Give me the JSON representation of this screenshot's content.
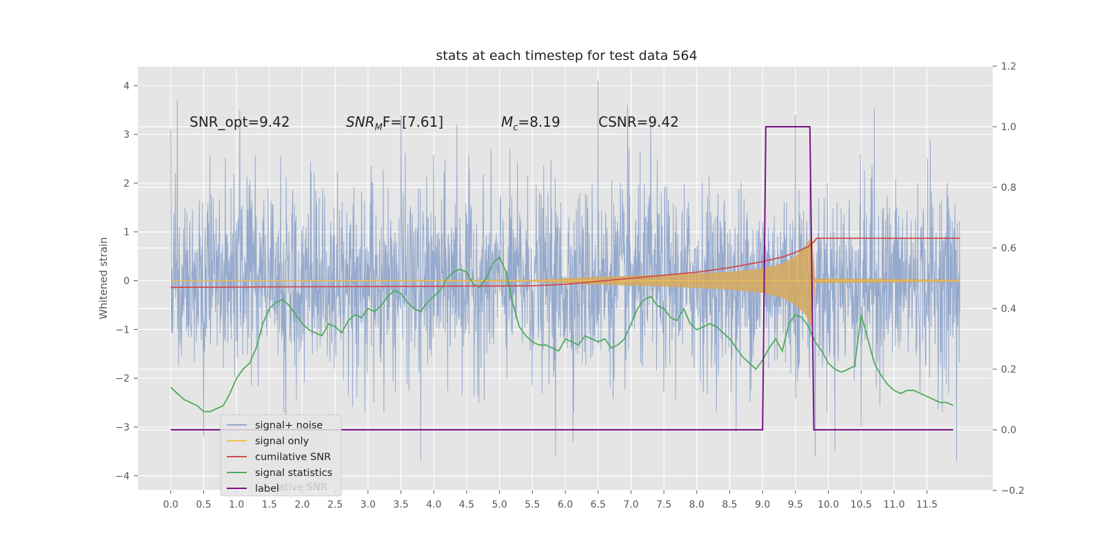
{
  "chart_data": {
    "type": "line",
    "title": "stats at each timestep for test data 564",
    "ylabel": "Whitened strain",
    "xlim": [
      -0.5,
      12.5
    ],
    "ylim": [
      -4.3,
      4.4
    ],
    "y2lim": [
      -0.2,
      1.2
    ],
    "x_ticks": [
      "0.0",
      "0.5",
      "1.0",
      "1.5",
      "2.0",
      "2.5",
      "3.0",
      "3.5",
      "4.0",
      "4.5",
      "5.0",
      "5.5",
      "6.0",
      "6.5",
      "7.0",
      "7.5",
      "8.0",
      "8.5",
      "9.0",
      "9.5",
      "10.0",
      "10.5",
      "11.0",
      "11.5"
    ],
    "y_ticks": [
      "4",
      "3",
      "2",
      "1",
      "0",
      "−1",
      "−2",
      "−3",
      "−4"
    ],
    "y2_ticks": [
      "1.2",
      "1.0",
      "0.8",
      "0.6",
      "0.4",
      "0.2",
      "0.0",
      "−0.2"
    ],
    "grid": true,
    "legend_position": "lower-left",
    "annotations": {
      "snr_opt": "SNR_opt=9.42",
      "snr_mf_main": "SNR",
      "snr_mf_sub": "M",
      "snr_mf_rest": "F=[7.61]",
      "mc_main": "M",
      "mc_sub": "c",
      "mc_rest": "=8.19",
      "csnr": "CSNR=9.42"
    },
    "legend": {
      "signal_noise": "signal+ noise",
      "signal_only": "signal only",
      "cumulative_snr": "cumilative SNR",
      "signal_statistics": "signal statistics",
      "label": "label",
      "ghost_text": "lative SNR"
    },
    "colors": {
      "signal_noise": "#8fa5cb",
      "signal_only": "#f2c14e",
      "signal_only_fill": "#d7a95a",
      "cumulative_snr": "#d04a4a",
      "signal_statistics": "#4caa5c",
      "label": "#7b0f87",
      "plot_bg": "#e5e5e5",
      "grid": "#ffffff"
    },
    "series": [
      {
        "name": "signal+ noise",
        "axis": "left",
        "x_range": [
          0.0,
          12.0
        ],
        "typical_envelope": [
          -2.1,
          2.1
        ],
        "peaks": [
          [
            0.0,
            3.1
          ],
          [
            0.1,
            3.7
          ],
          [
            1.05,
            3.5
          ],
          [
            3.5,
            3.4
          ],
          [
            4.35,
            3.2
          ],
          [
            6.5,
            4.1
          ],
          [
            6.95,
            3.6
          ],
          [
            7.3,
            3.4
          ],
          [
            9.5,
            3.4
          ],
          [
            10.7,
            3.55
          ],
          [
            11.55,
            2.9
          ]
        ],
        "troughs": [
          [
            0.5,
            -3.2
          ],
          [
            1.75,
            -3.0
          ],
          [
            3.8,
            -3.7
          ],
          [
            5.85,
            -3.6
          ],
          [
            6.12,
            -3.3
          ],
          [
            8.6,
            -3.1
          ],
          [
            9.8,
            -3.6
          ],
          [
            10.1,
            -3.5
          ],
          [
            10.5,
            -3.0
          ],
          [
            11.95,
            -3.7
          ]
        ]
      },
      {
        "name": "signal only",
        "axis": "left",
        "x": [
          0.0,
          5.5,
          6.0,
          6.5,
          7.0,
          7.5,
          8.0,
          8.5,
          9.0,
          9.3,
          9.5,
          9.65,
          9.75,
          9.8,
          12.0
        ],
        "envelope": [
          0.01,
          0.02,
          0.05,
          0.08,
          0.1,
          0.12,
          0.15,
          0.18,
          0.25,
          0.35,
          0.5,
          0.7,
          0.95,
          0.05,
          0.02
        ]
      },
      {
        "name": "cumilative SNR",
        "axis": "right",
        "x": [
          0.0,
          5.5,
          6.0,
          6.5,
          7.0,
          7.5,
          8.0,
          8.5,
          9.0,
          9.3,
          9.5,
          9.6,
          9.7,
          9.78,
          9.82,
          12.0
        ],
        "y": [
          0.47,
          0.475,
          0.48,
          0.49,
          0.5,
          0.51,
          0.52,
          0.535,
          0.555,
          0.57,
          0.585,
          0.595,
          0.605,
          0.62,
          0.632,
          0.632
        ]
      },
      {
        "name": "signal statistics",
        "axis": "right",
        "x": [
          0.0,
          0.1,
          0.2,
          0.3,
          0.4,
          0.5,
          0.6,
          0.7,
          0.8,
          0.9,
          1.0,
          1.1,
          1.2,
          1.3,
          1.4,
          1.5,
          1.6,
          1.7,
          1.8,
          1.9,
          2.0,
          2.1,
          2.2,
          2.3,
          2.4,
          2.5,
          2.6,
          2.7,
          2.8,
          2.9,
          3.0,
          3.1,
          3.2,
          3.3,
          3.4,
          3.5,
          3.6,
          3.7,
          3.8,
          3.9,
          4.0,
          4.1,
          4.2,
          4.3,
          4.4,
          4.5,
          4.6,
          4.7,
          4.8,
          4.9,
          5.0,
          5.1,
          5.2,
          5.3,
          5.4,
          5.5,
          5.6,
          5.7,
          5.8,
          5.9,
          6.0,
          6.1,
          6.2,
          6.3,
          6.4,
          6.5,
          6.6,
          6.7,
          6.8,
          6.9,
          7.0,
          7.1,
          7.2,
          7.3,
          7.4,
          7.5,
          7.6,
          7.7,
          7.8,
          7.9,
          8.0,
          8.1,
          8.2,
          8.3,
          8.4,
          8.5,
          8.6,
          8.7,
          8.8,
          8.9,
          9.0,
          9.1,
          9.2,
          9.3,
          9.4,
          9.5,
          9.6,
          9.7,
          9.8,
          9.9,
          10.0,
          10.1,
          10.2,
          10.3,
          10.4,
          10.5,
          10.6,
          10.7,
          10.8,
          10.9,
          11.0,
          11.1,
          11.2,
          11.3,
          11.4,
          11.5,
          11.6,
          11.7,
          11.8,
          11.9
        ],
        "y": [
          0.14,
          0.12,
          0.1,
          0.09,
          0.08,
          0.06,
          0.06,
          0.07,
          0.08,
          0.12,
          0.17,
          0.2,
          0.22,
          0.27,
          0.35,
          0.4,
          0.42,
          0.43,
          0.41,
          0.38,
          0.35,
          0.33,
          0.32,
          0.31,
          0.35,
          0.34,
          0.32,
          0.36,
          0.38,
          0.37,
          0.4,
          0.39,
          0.41,
          0.44,
          0.46,
          0.45,
          0.42,
          0.4,
          0.39,
          0.42,
          0.44,
          0.46,
          0.5,
          0.52,
          0.53,
          0.52,
          0.48,
          0.47,
          0.5,
          0.55,
          0.57,
          0.52,
          0.42,
          0.34,
          0.31,
          0.29,
          0.28,
          0.28,
          0.27,
          0.26,
          0.3,
          0.29,
          0.28,
          0.31,
          0.3,
          0.29,
          0.3,
          0.27,
          0.28,
          0.3,
          0.35,
          0.4,
          0.43,
          0.44,
          0.41,
          0.4,
          0.37,
          0.36,
          0.4,
          0.35,
          0.33,
          0.34,
          0.35,
          0.34,
          0.32,
          0.3,
          0.27,
          0.24,
          0.22,
          0.2,
          0.23,
          0.27,
          0.3,
          0.26,
          0.35,
          0.38,
          0.37,
          0.34,
          0.29,
          0.26,
          0.22,
          0.2,
          0.19,
          0.2,
          0.21,
          0.38,
          0.3,
          0.22,
          0.18,
          0.15,
          0.13,
          0.12,
          0.13,
          0.13,
          0.12,
          0.11,
          0.1,
          0.09,
          0.09,
          0.08
        ]
      },
      {
        "name": "label",
        "axis": "right",
        "x": [
          0.0,
          9.0,
          9.05,
          9.72,
          9.78,
          11.9
        ],
        "y": [
          0.0,
          0.0,
          1.0,
          1.0,
          0.0,
          0.0
        ]
      }
    ]
  }
}
